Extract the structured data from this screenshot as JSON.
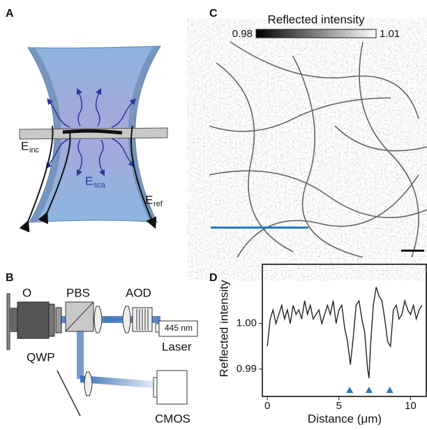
{
  "panels": {
    "a": "A",
    "b": "B",
    "c": "C",
    "d": "D"
  },
  "illustration": {
    "e_inc": {
      "main": "E",
      "sub": "inc"
    },
    "e_sca": {
      "main": "E",
      "sub": "sca"
    },
    "e_ref": {
      "main": "E",
      "sub": "ref"
    }
  },
  "setup": {
    "objective": "O",
    "pbs": "PBS",
    "aod": "AOD",
    "wavelength": "445 nm",
    "laser": "Laser",
    "qwp": "QWP",
    "camera": "CMOS"
  },
  "image": {
    "colorbar_title": "Reflected intensity",
    "colorbar_min": 0.98,
    "colorbar_max": 1.01
  },
  "chart_data": {
    "type": "line",
    "xlabel": "Distance (μm)",
    "ylabel": "Reflected intensity",
    "x": [
      0,
      0.2,
      0.4,
      0.6,
      0.8,
      1.0,
      1.2,
      1.4,
      1.6,
      1.8,
      2.0,
      2.2,
      2.4,
      2.6,
      2.8,
      3.0,
      3.2,
      3.4,
      3.6,
      3.8,
      4.0,
      4.2,
      4.4,
      4.6,
      4.8,
      5.0,
      5.2,
      5.4,
      5.6,
      5.8,
      6.0,
      6.2,
      6.4,
      6.6,
      6.8,
      7.0,
      7.1,
      7.2,
      7.4,
      7.6,
      7.8,
      8.0,
      8.2,
      8.4,
      8.6,
      8.8,
      9.0,
      9.2,
      9.4,
      9.6,
      9.8,
      10.0,
      10.2,
      10.4,
      10.6,
      10.8
    ],
    "series": [
      {
        "color": "#222222",
        "values": [
          0.995,
          1.001,
          1.003,
          1.0,
          1.002,
          1.004,
          1.001,
          1.003,
          1.0,
          1.004,
          1.002,
          1.003,
          1.001,
          1.005,
          1.002,
          1.004,
          1.001,
          1.002,
          1.003,
          1.0,
          1.002,
          1.004,
          1.002,
          1.005,
          1.0,
          1.003,
          1.004,
          0.999,
          0.996,
          0.991,
          0.997,
          1.004,
          1.005,
          1.001,
          0.998,
          0.99,
          0.988,
          0.995,
          1.004,
          1.008,
          1.006,
          1.005,
          1.001,
          0.996,
          0.995,
          1.003,
          1.004,
          1.001,
          1.002,
          1.005,
          1.003,
          1.002,
          1.004,
          1.001,
          1.003,
          1.004
        ]
      }
    ],
    "markers": {
      "color": "#2a7ab8",
      "x": [
        5.75,
        7.1,
        8.55
      ]
    },
    "xlim": [
      -0.35,
      11.1
    ],
    "xticks": [
      0,
      5,
      10
    ],
    "ylim": [
      0.984,
      1.013
    ],
    "yticks": [
      0.99,
      {
        "value": 1,
        "label": "1.00"
      }
    ]
  }
}
